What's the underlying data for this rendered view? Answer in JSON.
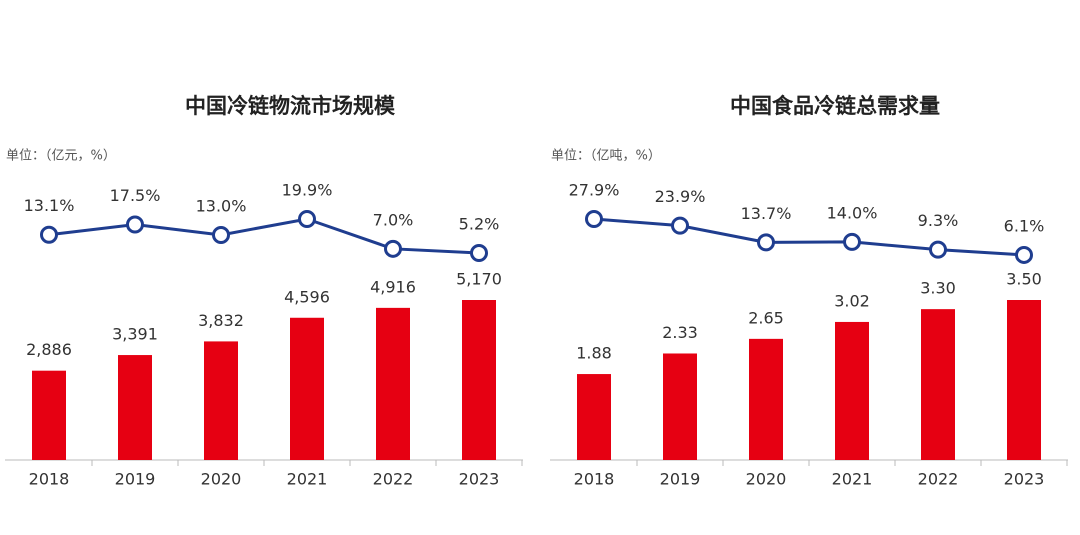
{
  "chart_data": [
    {
      "type": "combo",
      "title": "中国冷链物流市场规模",
      "unit_label": "单位：（亿元，%）",
      "categories": [
        "2018",
        "2019",
        "2020",
        "2021",
        "2022",
        "2023"
      ],
      "series": [
        {
          "color": "#e60012",
          "values": [
            2886,
            3391,
            3832,
            4596,
            4916,
            5170
          ],
          "value_labels": [
            "2,886",
            "3,391",
            "3,832",
            "4,596",
            "4,916",
            "5,170"
          ]
        },
        {
          "color": "#1f3d8f",
          "axis": "y2",
          "values": [
            13.1,
            17.5,
            13.0,
            19.9,
            7.0,
            5.2
          ],
          "value_labels": [
            "13.1%",
            "17.5%",
            "13.0%",
            "19.9%",
            "7.0%",
            "5.2%"
          ]
        }
      ]
    },
    {
      "type": "combo",
      "title": "中国食品冷链总需求量",
      "unit_label": "单位：（亿吨，%）",
      "categories": [
        "2018",
        "2019",
        "2020",
        "2021",
        "2022",
        "2023"
      ],
      "series": [
        {
          "color": "#e60012",
          "values": [
            1.88,
            2.33,
            2.65,
            3.02,
            3.3,
            3.5
          ],
          "value_labels": [
            "1.88",
            "2.33",
            "2.65",
            "3.02",
            "3.30",
            "3.50"
          ]
        },
        {
          "color": "#1f3d8f",
          "axis": "y2",
          "values": [
            27.9,
            23.9,
            13.7,
            14.0,
            9.3,
            6.1
          ],
          "value_labels": [
            "27.9%",
            "23.9%",
            "13.7%",
            "14.0%",
            "9.3%",
            "6.1%"
          ]
        }
      ]
    }
  ]
}
